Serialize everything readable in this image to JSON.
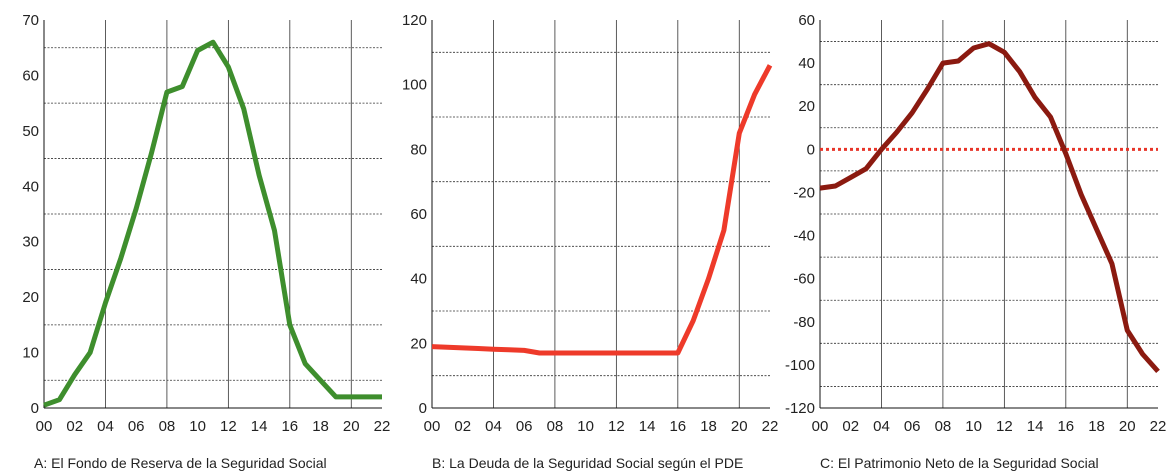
{
  "chart_data": [
    {
      "type": "line",
      "caption": "A:  El Fondo de Reserva de la Seguridad Social",
      "x": [
        0,
        1,
        2,
        3,
        4,
        5,
        6,
        7,
        8,
        9,
        10,
        11,
        12,
        13,
        14,
        15,
        16,
        17,
        18,
        19,
        20,
        21,
        22
      ],
      "xticks": [
        "00",
        "02",
        "04",
        "06",
        "08",
        "10",
        "12",
        "14",
        "16",
        "18",
        "20",
        "22"
      ],
      "ylim": [
        0,
        70
      ],
      "yticks": [
        "0",
        "10",
        "20",
        "30",
        "40",
        "50",
        "60",
        "70"
      ],
      "series": [
        {
          "color": "#3e8e2d",
          "values": [
            0.5,
            1.5,
            6,
            10,
            19,
            27,
            36,
            46,
            57,
            58,
            64.5,
            66,
            61.5,
            54,
            42,
            32,
            15,
            8,
            5,
            2,
            2,
            2,
            2
          ]
        }
      ],
      "grid": "solid vertical every 4 years, dashed horizontal at 5, 15, 25, 35, 45, 55, 65",
      "reference_line": null
    },
    {
      "type": "line",
      "caption": "B: La Deuda de la Seguridad Social según el PDE",
      "x": [
        0,
        1,
        2,
        3,
        4,
        5,
        6,
        7,
        8,
        9,
        10,
        11,
        12,
        13,
        14,
        15,
        16,
        17,
        18,
        19,
        20,
        21,
        22
      ],
      "xticks": [
        "00",
        "02",
        "04",
        "06",
        "08",
        "10",
        "12",
        "14",
        "16",
        "18",
        "20",
        "22"
      ],
      "ylim": [
        0,
        120
      ],
      "yticks": [
        "0",
        "20",
        "40",
        "60",
        "80",
        "100",
        "120"
      ],
      "series": [
        {
          "color": "#ee3a2a",
          "values": [
            19,
            18.8,
            18.6,
            18.4,
            18.2,
            18,
            17.8,
            17,
            17,
            17,
            17,
            17,
            17,
            17,
            17,
            17,
            17,
            27,
            40,
            55,
            85,
            97,
            106
          ]
        }
      ],
      "grid": "solid vertical every 4 years, dashed horizontal at 10, 30, 50, 70, 90, 110",
      "reference_line": null
    },
    {
      "type": "line",
      "caption": "C:  El Patrimonio Neto de la Seguridad Social",
      "x": [
        0,
        1,
        2,
        3,
        4,
        5,
        6,
        7,
        8,
        9,
        10,
        11,
        12,
        13,
        14,
        15,
        16,
        17,
        18,
        19,
        20,
        21,
        22
      ],
      "xticks": [
        "00",
        "02",
        "04",
        "06",
        "08",
        "10",
        "12",
        "14",
        "16",
        "18",
        "20",
        "22"
      ],
      "ylim": [
        -120,
        60
      ],
      "yticks": [
        "60",
        "40",
        "20",
        "0",
        "-20",
        "-40",
        "-60",
        "-80",
        "-100",
        "-120"
      ],
      "series": [
        {
          "color": "#8b1a10",
          "values": [
            -18,
            -17,
            -13,
            -9,
            0,
            8,
            17,
            28,
            40,
            41,
            47,
            49,
            45,
            36,
            24,
            15,
            -2,
            -21,
            -37,
            -53,
            -84,
            -95,
            -103
          ]
        }
      ],
      "grid": "solid vertical every 4 years, dashed horizontal at 50, 30, 10, -10, -30, -50, -70, -90, -110",
      "reference_line": {
        "y": 0,
        "color": "#e8362a",
        "style": "dotted"
      }
    }
  ]
}
